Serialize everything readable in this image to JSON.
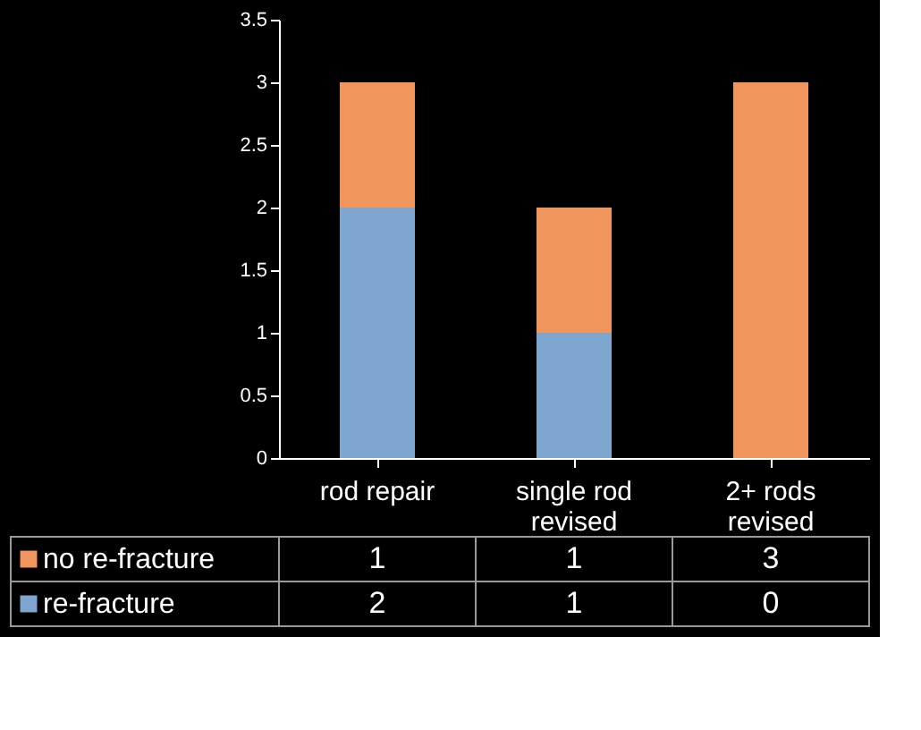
{
  "chart_data": {
    "type": "bar",
    "stacked": true,
    "categories": [
      "rod repair",
      "single rod revised",
      "2+ rods revised"
    ],
    "series": [
      {
        "name": "re-fracture",
        "color": "#7ea6cf",
        "values": [
          2,
          1,
          0
        ]
      },
      {
        "name": "no re-fracture",
        "color": "#f0955b",
        "values": [
          1,
          1,
          3
        ]
      }
    ],
    "ylim": [
      0,
      3.5
    ],
    "yticks": [
      0,
      0.5,
      1,
      1.5,
      2,
      2.5,
      3,
      3.5
    ],
    "data_labels": true,
    "legend": "bottom",
    "grid": false
  }
}
